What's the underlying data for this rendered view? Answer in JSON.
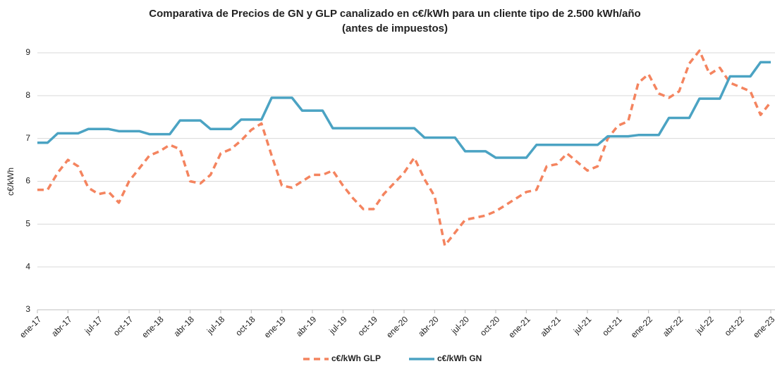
{
  "chart_data": {
    "type": "line",
    "title": "Comparativa de Precios de GN y GLP canalizado en c€/kWh para un cliente tipo de 2.500 kWh/año",
    "subtitle": "(antes de impuestos)",
    "y_label": "c€/kWh",
    "categories": [
      "ene-17",
      null,
      null,
      "abr-17",
      null,
      null,
      "jul-17",
      null,
      null,
      "oct-17",
      null,
      null,
      "ene-18",
      null,
      null,
      "abr-18",
      null,
      null,
      "jul-18",
      null,
      null,
      "oct-18",
      null,
      null,
      "ene-19",
      null,
      null,
      "abr-19",
      null,
      null,
      "jul-19",
      null,
      null,
      "oct-19",
      null,
      null,
      "ene-20",
      null,
      null,
      "abr-20",
      null,
      null,
      "jul-20",
      null,
      null,
      "oct-20",
      null,
      null,
      "ene-21",
      null,
      null,
      "abr-21",
      null,
      null,
      "jul-21",
      null,
      null,
      "oct-21",
      null,
      null,
      "ene-22",
      null,
      null,
      "abr-22",
      null,
      null,
      "jul-22",
      null,
      null,
      "oct-22",
      null,
      null,
      "ene-23"
    ],
    "series": [
      {
        "name": "c€/kWh GLP",
        "color": "#f4845f",
        "dashed": true,
        "values": [
          5.8,
          5.8,
          6.2,
          6.5,
          6.35,
          5.85,
          5.7,
          5.75,
          5.5,
          6.0,
          6.3,
          6.6,
          6.7,
          6.85,
          6.75,
          6.0,
          5.95,
          6.15,
          6.65,
          6.75,
          6.95,
          7.2,
          7.35,
          6.6,
          5.9,
          5.85,
          6.0,
          6.15,
          6.15,
          6.25,
          5.9,
          5.6,
          5.35,
          5.35,
          5.7,
          5.95,
          6.2,
          6.55,
          6.05,
          5.65,
          4.5,
          4.8,
          5.1,
          5.15,
          5.2,
          5.3,
          5.45,
          5.6,
          5.75,
          5.8,
          6.35,
          6.4,
          6.65,
          6.45,
          6.25,
          6.35,
          7.0,
          7.3,
          7.4,
          8.3,
          8.5,
          8.05,
          7.95,
          8.1,
          8.75,
          9.05,
          8.5,
          8.65,
          8.3,
          8.2,
          8.1,
          7.55,
          7.85
        ]
      },
      {
        "name": "c€/kWh GN",
        "color": "#4ba3c3",
        "dashed": false,
        "values": [
          6.9,
          6.9,
          7.12,
          7.12,
          7.12,
          7.22,
          7.22,
          7.22,
          7.17,
          7.17,
          7.17,
          7.1,
          7.1,
          7.1,
          7.42,
          7.42,
          7.42,
          7.22,
          7.22,
          7.22,
          7.44,
          7.44,
          7.44,
          7.95,
          7.95,
          7.95,
          7.65,
          7.65,
          7.65,
          7.24,
          7.24,
          7.24,
          7.24,
          7.24,
          7.24,
          7.24,
          7.24,
          7.24,
          7.02,
          7.02,
          7.02,
          7.02,
          6.7,
          6.7,
          6.7,
          6.55,
          6.55,
          6.55,
          6.55,
          6.85,
          6.85,
          6.85,
          6.85,
          6.85,
          6.85,
          6.85,
          7.05,
          7.05,
          7.05,
          7.08,
          7.08,
          7.08,
          7.48,
          7.48,
          7.48,
          7.93,
          7.93,
          7.93,
          8.45,
          8.45,
          8.45,
          8.78,
          8.78
        ]
      }
    ],
    "ylim": [
      3,
      9
    ],
    "yticks": [
      3,
      4,
      5,
      6,
      7,
      8,
      9
    ],
    "grid": true,
    "legend": "bottom"
  }
}
